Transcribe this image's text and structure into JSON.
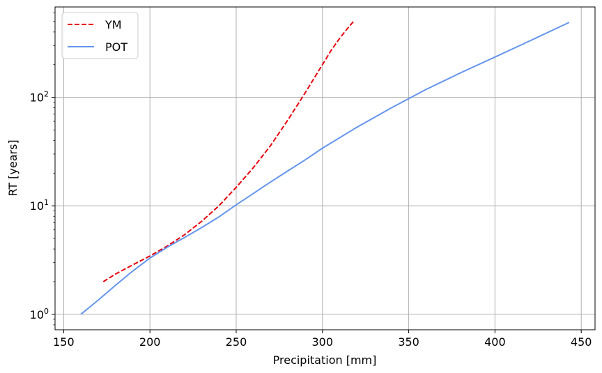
{
  "chart_data": {
    "type": "line",
    "xlabel": "Precipitation [mm]",
    "ylabel": "RT [years]",
    "xlim": [
      145,
      458
    ],
    "ylim": [
      0.72,
      680
    ],
    "yscale": "log",
    "grid": true,
    "legend_position": "top-left",
    "x_ticks": [
      150,
      200,
      250,
      300,
      350,
      400,
      450
    ],
    "y_ticks": [
      {
        "value": 1,
        "base": "10",
        "exp": "0"
      },
      {
        "value": 10,
        "base": "10",
        "exp": "1"
      },
      {
        "value": 100,
        "base": "10",
        "exp": "2"
      }
    ],
    "series": [
      {
        "name": "YM",
        "color": "#e8000b",
        "linestyle": "dashed",
        "x": [
          173,
          180,
          190,
          200,
          210,
          220,
          230,
          240,
          250,
          260,
          270,
          280,
          290,
          300,
          305,
          310,
          315,
          318
        ],
        "y": [
          2.0,
          2.35,
          2.85,
          3.45,
          4.25,
          5.4,
          7.2,
          10.0,
          14.8,
          22.5,
          36,
          62,
          110,
          200,
          270,
          350,
          440,
          500
        ]
      },
      {
        "name": "POT",
        "color": "#6495ed",
        "linestyle": "solid",
        "x": [
          160,
          170,
          180,
          190,
          200,
          210,
          220,
          230,
          240,
          250,
          260,
          270,
          280,
          290,
          300,
          320,
          340,
          360,
          380,
          400,
          420,
          443
        ],
        "y": [
          1.0,
          1.35,
          1.85,
          2.5,
          3.3,
          4.15,
          5.1,
          6.3,
          7.9,
          10.2,
          13.0,
          16.6,
          21,
          26.5,
          34,
          53,
          80,
          118,
          168,
          235,
          330,
          490
        ]
      }
    ]
  }
}
